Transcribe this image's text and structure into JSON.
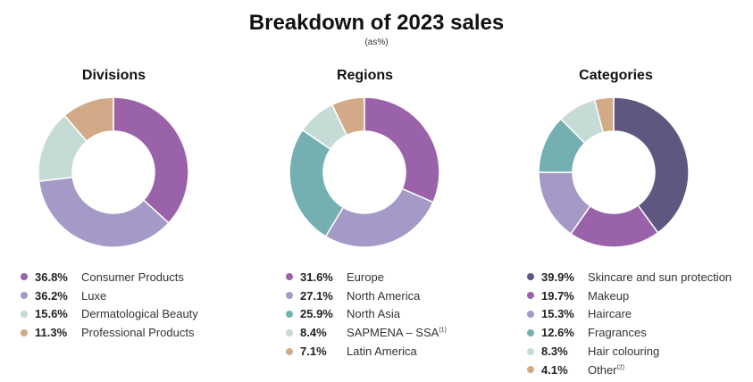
{
  "title": "Breakdown of 2023 sales",
  "subtitle": "(as%)",
  "chart_data": [
    {
      "type": "pie",
      "title": "Divisions",
      "slices": [
        {
          "label": "Consumer Products",
          "value": 36.8,
          "pct_text": "36.8%",
          "color": "#9a62a8"
        },
        {
          "label": "Luxe",
          "value": 36.2,
          "pct_text": "36.2%",
          "color": "#a599c8"
        },
        {
          "label": "Dermatological Beauty",
          "value": 15.6,
          "pct_text": "15.6%",
          "color": "#c5dcd6"
        },
        {
          "label": "Professional Products",
          "value": 11.3,
          "pct_text": "11.3%",
          "color": "#d3aa88"
        }
      ]
    },
    {
      "type": "pie",
      "title": "Regions",
      "slices": [
        {
          "label": "Europe",
          "value": 31.6,
          "pct_text": "31.6%",
          "color": "#9a62a8"
        },
        {
          "label": "North America",
          "value": 27.1,
          "pct_text": "27.1%",
          "color": "#a599c8"
        },
        {
          "label": "North Asia",
          "value": 25.9,
          "pct_text": "25.9%",
          "color": "#74b0b1"
        },
        {
          "label": "SAPMENA – SSA",
          "note": "(1)",
          "value": 8.4,
          "pct_text": "8.4%",
          "color": "#c5dcd6"
        },
        {
          "label": "Latin America",
          "value": 7.1,
          "pct_text": "7.1%",
          "color": "#d3aa88"
        }
      ]
    },
    {
      "type": "pie",
      "title": "Categories",
      "slices": [
        {
          "label": "Skincare and sun protection",
          "value": 39.9,
          "pct_text": "39.9%",
          "color": "#605780"
        },
        {
          "label": "Makeup",
          "value": 19.7,
          "pct_text": "19.7%",
          "color": "#9a62a8"
        },
        {
          "label": "Haircare",
          "value": 15.3,
          "pct_text": "15.3%",
          "color": "#a599c8"
        },
        {
          "label": "Fragrances",
          "value": 12.6,
          "pct_text": "12.6%",
          "color": "#74b0b1"
        },
        {
          "label": "Hair colouring",
          "value": 8.3,
          "pct_text": "8.3%",
          "color": "#c5dcd6"
        },
        {
          "label": "Other",
          "note": "(2)",
          "value": 4.1,
          "pct_text": "4.1%",
          "color": "#d3aa88"
        }
      ]
    }
  ]
}
